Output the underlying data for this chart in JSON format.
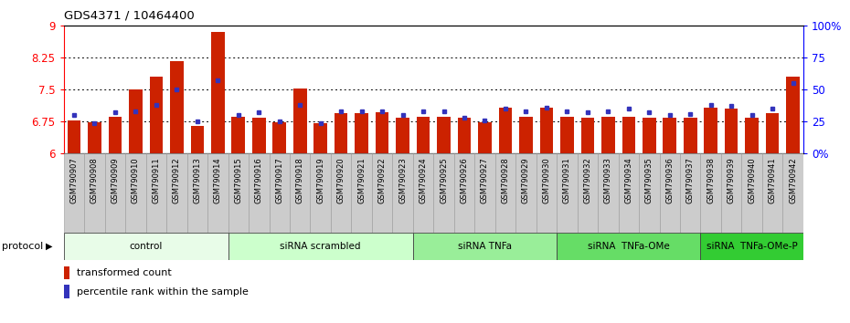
{
  "title": "GDS4371 / 10464400",
  "samples": [
    "GSM790907",
    "GSM790908",
    "GSM790909",
    "GSM790910",
    "GSM790911",
    "GSM790912",
    "GSM790913",
    "GSM790914",
    "GSM790915",
    "GSM790916",
    "GSM790917",
    "GSM790918",
    "GSM790919",
    "GSM790920",
    "GSM790921",
    "GSM790922",
    "GSM790923",
    "GSM790924",
    "GSM790925",
    "GSM790926",
    "GSM790927",
    "GSM790928",
    "GSM790929",
    "GSM790930",
    "GSM790931",
    "GSM790932",
    "GSM790933",
    "GSM790934",
    "GSM790935",
    "GSM790936",
    "GSM790937",
    "GSM790938",
    "GSM790939",
    "GSM790940",
    "GSM790941",
    "GSM790942"
  ],
  "transformed_count": [
    6.78,
    6.73,
    6.87,
    7.5,
    7.8,
    8.18,
    6.65,
    8.85,
    6.87,
    6.84,
    6.73,
    7.52,
    6.72,
    6.95,
    6.95,
    6.97,
    6.84,
    6.87,
    6.87,
    6.83,
    6.73,
    7.08,
    6.87,
    7.08,
    6.87,
    6.84,
    6.87,
    6.87,
    6.84,
    6.84,
    6.84,
    7.08,
    7.05,
    6.84,
    6.95,
    7.8
  ],
  "percentile_rank": [
    30,
    24,
    32,
    33,
    38,
    50,
    25,
    57,
    30,
    32,
    25,
    38,
    24,
    33,
    33,
    33,
    30,
    33,
    33,
    28,
    26,
    35,
    33,
    36,
    33,
    32,
    33,
    35,
    32,
    30,
    31,
    38,
    37,
    30,
    35,
    55
  ],
  "ylim_left": [
    6.0,
    9.0
  ],
  "ylim_right": [
    0,
    100
  ],
  "yticks_left": [
    6.0,
    6.75,
    7.5,
    8.25,
    9.0
  ],
  "ytick_labels_left": [
    "6",
    "6.75",
    "7.5",
    "8.25",
    "9"
  ],
  "yticks_right": [
    0,
    25,
    50,
    75,
    100
  ],
  "ytick_labels_right": [
    "0%",
    "25",
    "50",
    "75",
    "100%"
  ],
  "grid_lines": [
    6.75,
    7.5,
    8.25
  ],
  "bar_color": "#cc2200",
  "blue_color": "#3333bb",
  "protocol_groups": [
    {
      "label": "control",
      "start": 0,
      "end": 7,
      "color": "#e8fce8"
    },
    {
      "label": "siRNA scrambled",
      "start": 8,
      "end": 16,
      "color": "#ccffcc"
    },
    {
      "label": "siRNA TNFa",
      "start": 17,
      "end": 23,
      "color": "#99ee99"
    },
    {
      "label": "siRNA  TNFa-OMe",
      "start": 24,
      "end": 30,
      "color": "#66dd66"
    },
    {
      "label": "siRNA  TNFa-OMe-P",
      "start": 31,
      "end": 35,
      "color": "#33cc33"
    }
  ],
  "legend_transformed": "transformed count",
  "legend_percentile": "percentile rank within the sample",
  "protocol_label": "protocol",
  "bar_width": 0.65
}
